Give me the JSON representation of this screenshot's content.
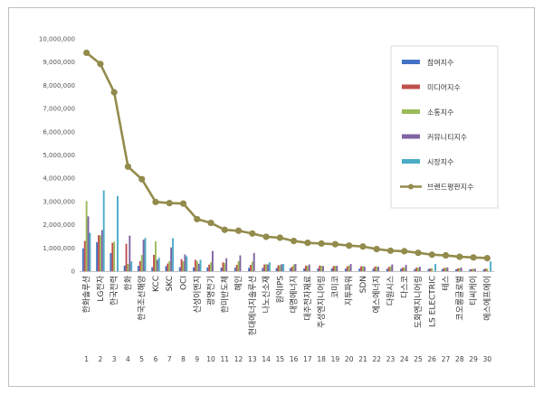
{
  "chart_data": {
    "type": "bar",
    "title": "",
    "xlabel": "",
    "ylabel": "",
    "ylim": [
      0,
      10000000
    ],
    "yticks": [
      "0",
      "1,000,000",
      "2,000,000",
      "3,000,000",
      "4,000,000",
      "5,000,000",
      "6,000,000",
      "7,000,000",
      "8,000,000",
      "9,000,000",
      "10,000,000"
    ],
    "grid": false,
    "legend_position": "right",
    "ranks": [
      "1",
      "2",
      "3",
      "4",
      "5",
      "6",
      "7",
      "8",
      "9",
      "10",
      "11",
      "12",
      "13",
      "14",
      "15",
      "16",
      "17",
      "18",
      "19",
      "20",
      "21",
      "22",
      "23",
      "24",
      "25",
      "26",
      "27",
      "28",
      "29",
      "30"
    ],
    "categories": [
      "한화솔루션",
      "LG전자",
      "한국전력",
      "한화",
      "한국조선해양",
      "KCC",
      "SKC",
      "OCI",
      "신성이엔지",
      "광명전기",
      "한미반도체",
      "혜인",
      "현대에너지솔루션",
      "나노신소재",
      "원익IPS",
      "대명에너지",
      "대주전자재료",
      "주성엔지니어링",
      "코미코",
      "지투파워",
      "SDN",
      "에스에너지",
      "다원시스",
      "다스코",
      "도화엔지니어링",
      "LS ELECTRIC",
      "테스",
      "코오롱글로벌",
      "티씨케이",
      "에스에프에이"
    ],
    "series": [
      {
        "name": "참여지수",
        "color": "#4472c4",
        "values": [
          980000,
          1250000,
          780000,
          240000,
          230000,
          170000,
          220000,
          170000,
          160000,
          160000,
          150000,
          150000,
          140000,
          140000,
          130000,
          130000,
          120000,
          120000,
          120000,
          110000,
          110000,
          110000,
          100000,
          100000,
          90000,
          90000,
          90000,
          80000,
          80000,
          80000
        ]
      },
      {
        "name": "미디어지수",
        "color": "#c0504d",
        "values": [
          1300000,
          1550000,
          1220000,
          1180000,
          430000,
          700000,
          330000,
          520000,
          490000,
          280000,
          380000,
          270000,
          270000,
          290000,
          250000,
          190000,
          240000,
          240000,
          220000,
          210000,
          210000,
          200000,
          180000,
          160000,
          150000,
          120000,
          140000,
          120000,
          90000,
          110000
        ]
      },
      {
        "name": "소통지수",
        "color": "#9bbb59",
        "values": [
          3020000,
          1540000,
          1270000,
          310000,
          700000,
          1280000,
          440000,
          420000,
          430000,
          380000,
          350000,
          430000,
          410000,
          300000,
          260000,
          290000,
          230000,
          240000,
          230000,
          240000,
          220000,
          210000,
          210000,
          160000,
          150000,
          120000,
          150000,
          140000,
          110000,
          110000
        ]
      },
      {
        "name": "커뮤니티지수",
        "color": "#8064a2",
        "values": [
          2360000,
          1770000,
          0,
          1530000,
          1350000,
          490000,
          1020000,
          720000,
          320000,
          870000,
          560000,
          680000,
          780000,
          290000,
          300000,
          310000,
          290000,
          220000,
          230000,
          310000,
          190000,
          190000,
          290000,
          270000,
          190000,
          0,
          160000,
          150000,
          100000,
          0
        ]
      },
      {
        "name": "시장지수",
        "color": "#4bacc6",
        "values": [
          1650000,
          3480000,
          3240000,
          420000,
          1430000,
          580000,
          1420000,
          640000,
          490000,
          0,
          0,
          0,
          0,
          380000,
          310000,
          0,
          0,
          0,
          0,
          0,
          0,
          0,
          0,
          0,
          0,
          310000,
          0,
          0,
          0,
          420000
        ]
      },
      {
        "name": "브랜드평판지수",
        "color": "#938b4c",
        "values": [
          9400000,
          8920000,
          7700000,
          4500000,
          3960000,
          2980000,
          2930000,
          2910000,
          2240000,
          2080000,
          1780000,
          1740000,
          1620000,
          1480000,
          1440000,
          1300000,
          1220000,
          1190000,
          1160000,
          1100000,
          1060000,
          950000,
          880000,
          860000,
          790000,
          710000,
          680000,
          620000,
          590000,
          560000
        ]
      }
    ]
  }
}
